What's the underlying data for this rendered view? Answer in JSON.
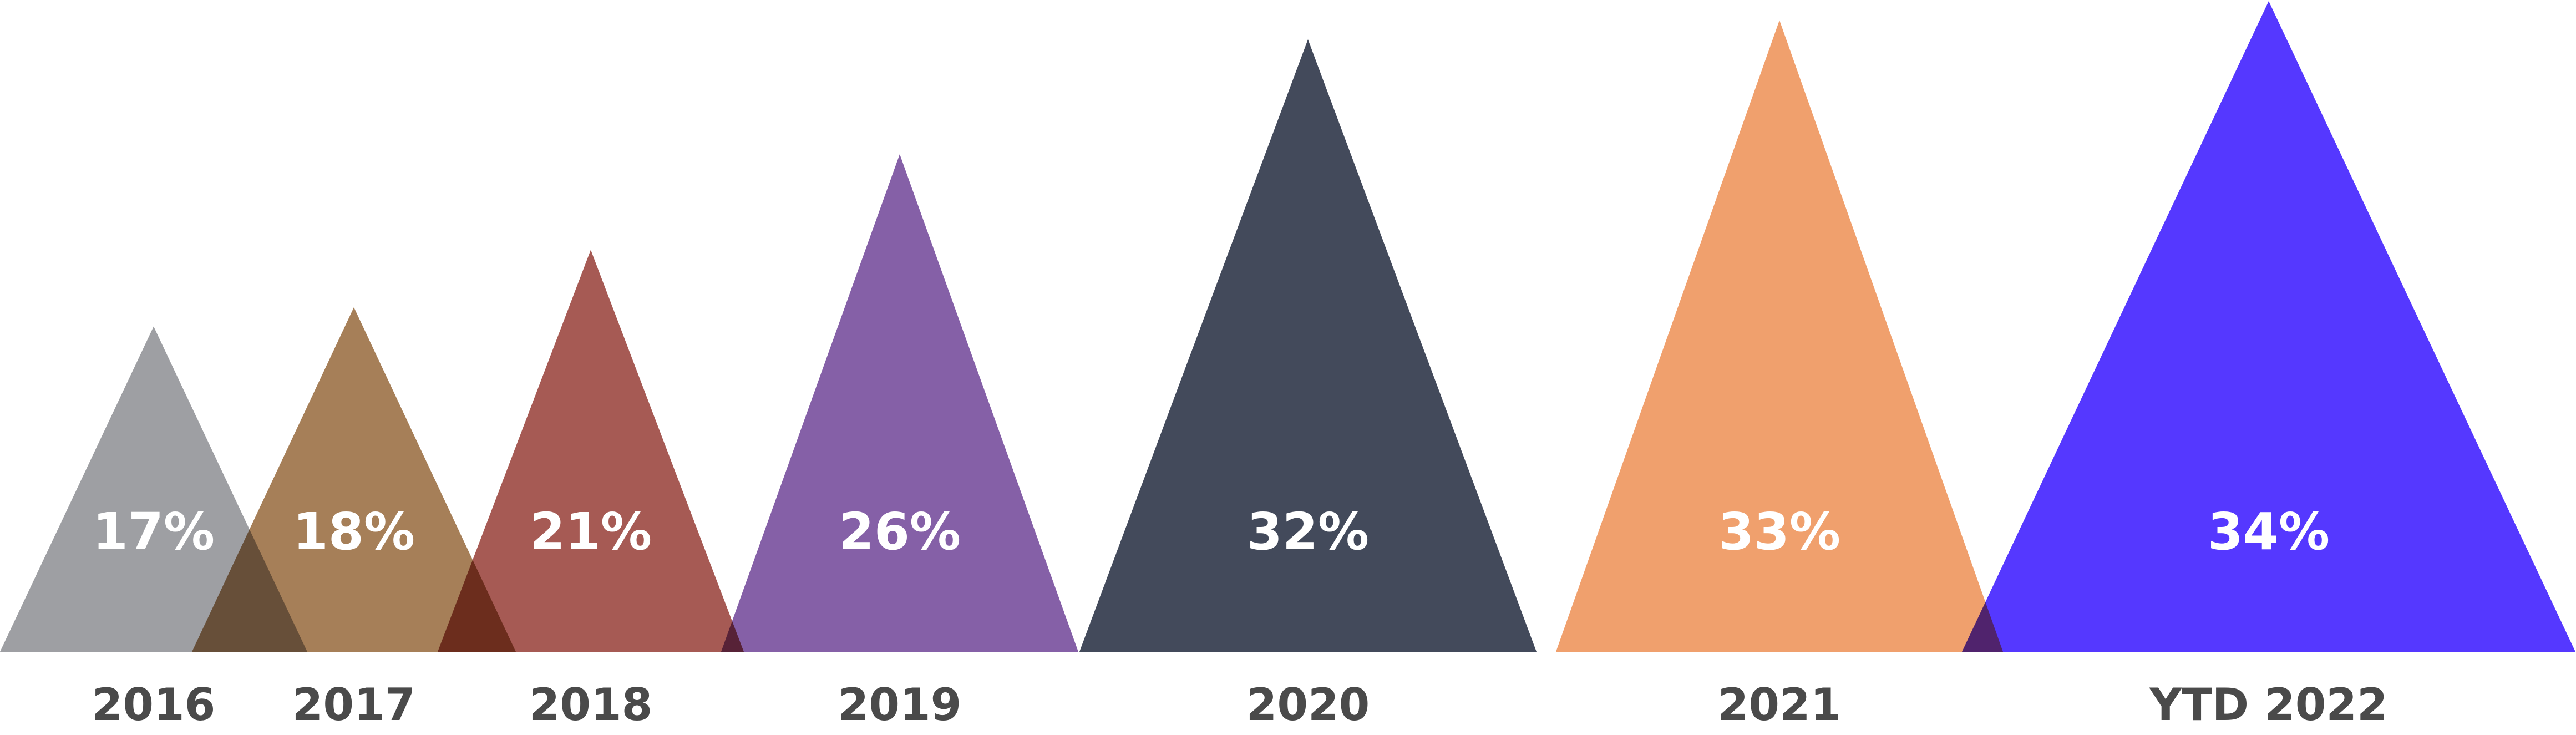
{
  "chart_data": {
    "type": "bar",
    "title": "",
    "xlabel": "",
    "ylabel": "",
    "categories": [
      "2016",
      "2017",
      "2018",
      "2019",
      "2020",
      "2021",
      "YTD 2022"
    ],
    "values": [
      17,
      18,
      21,
      26,
      32,
      33,
      34
    ],
    "value_labels": [
      "17%",
      "18%",
      "21%",
      "26%",
      "32%",
      "33%",
      "34%"
    ],
    "unit": "%",
    "ylim": [
      0,
      34
    ],
    "grid": false,
    "legend": "none",
    "colors": [
      "#9e9fa3",
      "#a67f58",
      "#a65a54",
      "#8560a7",
      "#434a5b",
      "#f0a06d",
      "#5538ff"
    ]
  }
}
